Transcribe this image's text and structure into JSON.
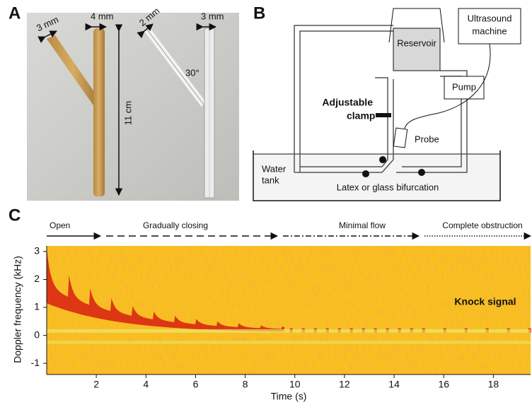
{
  "panel_a": {
    "label": "A",
    "labels": [
      "3 mm",
      "4 mm",
      "2 mm",
      "3 mm",
      "30°",
      "11 cm"
    ]
  },
  "panel_b": {
    "label": "B",
    "reservoir": "Reservoir",
    "ultrasound": [
      "Ultrasound",
      "machine"
    ],
    "pump": "Pump",
    "clamp": [
      "Adjustable",
      "clamp"
    ],
    "probe": "Probe",
    "tank": [
      "Water",
      "tank"
    ],
    "bifurcation": "Latex or glass bifurcation"
  },
  "panel_c": {
    "label": "C",
    "phases": [
      "Open",
      "Gradually closing",
      "Minimal flow",
      "Complete obstruction"
    ],
    "annotation": "Knock signal",
    "y_label": "Doppler frequency (kHz)",
    "x_label": "Time (s)",
    "xlim": [
      0,
      19.5
    ],
    "ylim": [
      -1.4,
      3.2
    ],
    "xticks": [
      2,
      4,
      6,
      8,
      10,
      12,
      14,
      16,
      18
    ],
    "yticks": [
      3,
      2,
      1,
      0,
      -1
    ]
  }
}
